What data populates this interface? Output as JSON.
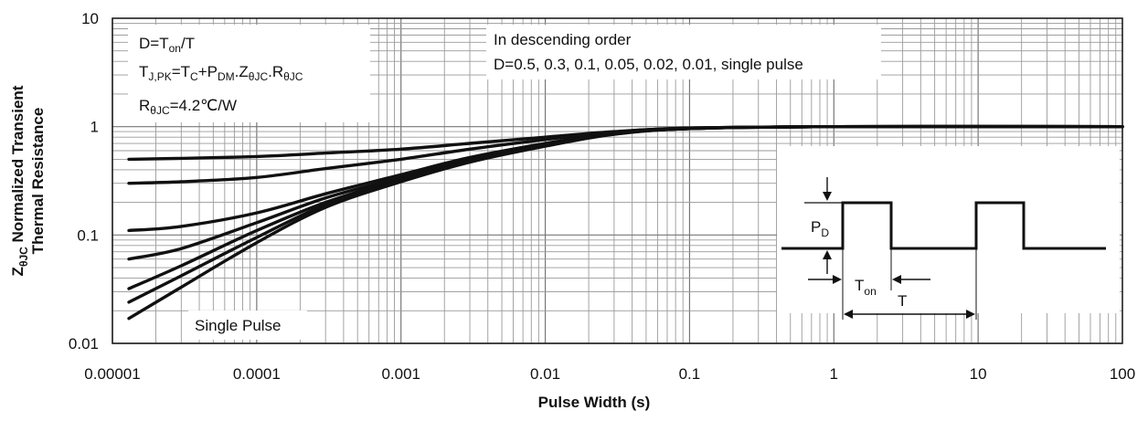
{
  "chart_data": {
    "type": "line",
    "xlabel": "Pulse Width (s)",
    "ylabel_line1": "Z",
    "ylabel_sub": "θJC",
    "ylabel_rest": " Normalized Transient",
    "ylabel_line2": "Thermal Resistance",
    "x_scale": "log",
    "y_scale": "log",
    "xlim": [
      1e-05,
      100
    ],
    "ylim": [
      0.01,
      10
    ],
    "grid": true,
    "x_ticks": [
      "0.00001",
      "0.0001",
      "0.001",
      "0.01",
      "0.1",
      "1",
      "10",
      "100"
    ],
    "y_ticks": [
      "0.01",
      "0.1",
      "1",
      "10"
    ],
    "annotations": {
      "formula_d": "D=T",
      "formula_d_sub": "on",
      "formula_d_rest": "/T",
      "formula_tj": "T",
      "formula_tj_sub": "J,PK",
      "formula_tj_rest1": "=T",
      "formula_tj_sub2": "C",
      "formula_tj_rest2": "+P",
      "formula_tj_sub3": "DM",
      "formula_tj_rest3": ".Z",
      "formula_tj_sub4": "θJC",
      "formula_tj_rest4": ".R",
      "formula_tj_sub5": "θJC",
      "formula_r": "R",
      "formula_r_sub": "θJC",
      "formula_r_rest": "=4.2℃/W",
      "order_line1": "In descending order",
      "order_line2": "D=0.5, 0.3, 0.1, 0.05, 0.02, 0.01, single pulse",
      "single_pulse": "Single Pulse",
      "pd_label": "P",
      "pd_sub": "D",
      "ton_label": "T",
      "ton_sub": "on",
      "t_label": "T"
    },
    "series": [
      {
        "x": [
          1.3e-05,
          3e-05,
          0.0001,
          0.0003,
          0.001,
          0.003,
          0.01,
          0.03,
          0.1,
          1,
          100
        ],
        "values": [
          0.5,
          0.51,
          0.53,
          0.57,
          0.62,
          0.7,
          0.8,
          0.9,
          0.97,
          1.0,
          1.0
        ]
      },
      {
        "x": [
          1.3e-05,
          3e-05,
          0.0001,
          0.0003,
          0.001,
          0.003,
          0.01,
          0.03,
          0.1,
          1,
          100
        ],
        "values": [
          0.3,
          0.31,
          0.34,
          0.41,
          0.5,
          0.62,
          0.76,
          0.89,
          0.97,
          1.0,
          1.0
        ]
      },
      {
        "x": [
          1.3e-05,
          3e-05,
          0.0001,
          0.0003,
          0.001,
          0.003,
          0.01,
          0.03,
          0.1,
          1,
          100
        ],
        "values": [
          0.11,
          0.12,
          0.16,
          0.24,
          0.36,
          0.52,
          0.7,
          0.87,
          0.96,
          1.0,
          1.0
        ]
      },
      {
        "x": [
          1.3e-05,
          3e-05,
          0.0001,
          0.0003,
          0.001,
          0.003,
          0.01,
          0.03,
          0.1,
          1,
          100
        ],
        "values": [
          0.06,
          0.075,
          0.13,
          0.22,
          0.34,
          0.5,
          0.69,
          0.86,
          0.96,
          1.0,
          1.0
        ]
      },
      {
        "x": [
          1.3e-05,
          3e-05,
          0.0001,
          0.0003,
          0.001,
          0.003,
          0.01,
          0.03,
          0.1,
          1,
          100
        ],
        "values": [
          0.032,
          0.052,
          0.11,
          0.2,
          0.33,
          0.49,
          0.68,
          0.86,
          0.96,
          1.0,
          1.0
        ]
      },
      {
        "x": [
          1.3e-05,
          3e-05,
          0.0001,
          0.0003,
          0.001,
          0.003,
          0.01,
          0.03,
          0.1,
          1,
          100
        ],
        "values": [
          0.024,
          0.042,
          0.095,
          0.19,
          0.32,
          0.48,
          0.67,
          0.85,
          0.96,
          1.0,
          1.0
        ]
      },
      {
        "x": [
          1.3e-05,
          3e-05,
          0.0001,
          0.0003,
          0.001,
          0.003,
          0.01,
          0.03,
          0.1,
          1,
          100
        ],
        "values": [
          0.017,
          0.033,
          0.085,
          0.18,
          0.31,
          0.47,
          0.66,
          0.85,
          0.96,
          1.0,
          1.0
        ]
      }
    ]
  }
}
